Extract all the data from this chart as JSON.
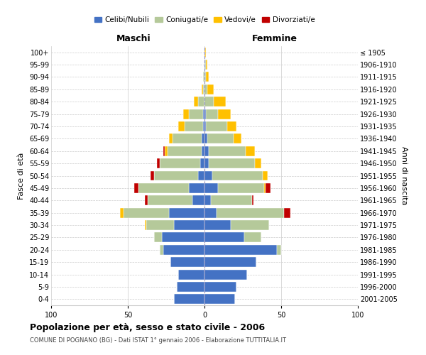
{
  "age_groups": [
    "0-4",
    "5-9",
    "10-14",
    "15-19",
    "20-24",
    "25-29",
    "30-34",
    "35-39",
    "40-44",
    "45-49",
    "50-54",
    "55-59",
    "60-64",
    "65-69",
    "70-74",
    "75-79",
    "80-84",
    "85-89",
    "90-94",
    "95-99",
    "100+"
  ],
  "birth_years": [
    "2001-2005",
    "1996-2000",
    "1991-1995",
    "1986-1990",
    "1981-1985",
    "1976-1980",
    "1971-1975",
    "1966-1970",
    "1961-1965",
    "1956-1960",
    "1951-1955",
    "1946-1950",
    "1941-1945",
    "1936-1940",
    "1931-1935",
    "1926-1930",
    "1921-1925",
    "1916-1920",
    "1911-1915",
    "1906-1910",
    "≤ 1905"
  ],
  "colors": {
    "celibi": "#4472c4",
    "coniugati": "#b5c99a",
    "vedovi": "#ffc000",
    "divorziati": "#c00000"
  },
  "males": {
    "celibi": [
      20,
      18,
      17,
      22,
      27,
      28,
      20,
      23,
      8,
      10,
      4,
      3,
      2,
      2,
      1,
      1,
      0,
      0,
      0,
      0,
      0
    ],
    "coniugati": [
      0,
      0,
      0,
      0,
      2,
      5,
      18,
      30,
      29,
      33,
      29,
      26,
      22,
      19,
      12,
      9,
      4,
      1,
      1,
      0,
      0
    ],
    "vedovi": [
      0,
      0,
      0,
      0,
      0,
      0,
      1,
      2,
      0,
      0,
      0,
      0,
      2,
      2,
      4,
      4,
      3,
      1,
      0,
      0,
      0
    ],
    "divorziati": [
      0,
      0,
      0,
      0,
      0,
      0,
      0,
      0,
      2,
      3,
      2,
      2,
      1,
      0,
      0,
      0,
      0,
      0,
      0,
      0,
      0
    ]
  },
  "females": {
    "celibi": [
      20,
      21,
      28,
      34,
      47,
      26,
      17,
      8,
      4,
      9,
      5,
      3,
      3,
      2,
      1,
      1,
      0,
      0,
      0,
      0,
      0
    ],
    "coniugati": [
      0,
      0,
      0,
      0,
      3,
      11,
      25,
      44,
      27,
      30,
      33,
      30,
      24,
      17,
      14,
      8,
      6,
      2,
      1,
      1,
      0
    ],
    "vedovi": [
      0,
      0,
      0,
      0,
      0,
      0,
      0,
      0,
      0,
      1,
      3,
      4,
      6,
      5,
      6,
      8,
      8,
      4,
      2,
      1,
      1
    ],
    "divorziati": [
      0,
      0,
      0,
      0,
      0,
      0,
      0,
      4,
      1,
      3,
      0,
      0,
      0,
      0,
      0,
      0,
      0,
      0,
      0,
      0,
      0
    ]
  },
  "xlim": 100,
  "title": "Popolazione per età, sesso e stato civile - 2006",
  "subtitle": "COMUNE DI POGNANO (BG) - Dati ISTAT 1° gennaio 2006 - Elaborazione TUTTITALIA.IT",
  "ylabel_left": "Fasce di età",
  "ylabel_right": "Anni di nascita",
  "xlabel_left": "Maschi",
  "xlabel_right": "Femmine",
  "legend_labels": [
    "Celibi/Nubili",
    "Coniugati/e",
    "Vedovi/e",
    "Divorziati/e"
  ],
  "bg_color": "#ffffff",
  "grid_color": "#cccccc",
  "bar_height": 0.8
}
